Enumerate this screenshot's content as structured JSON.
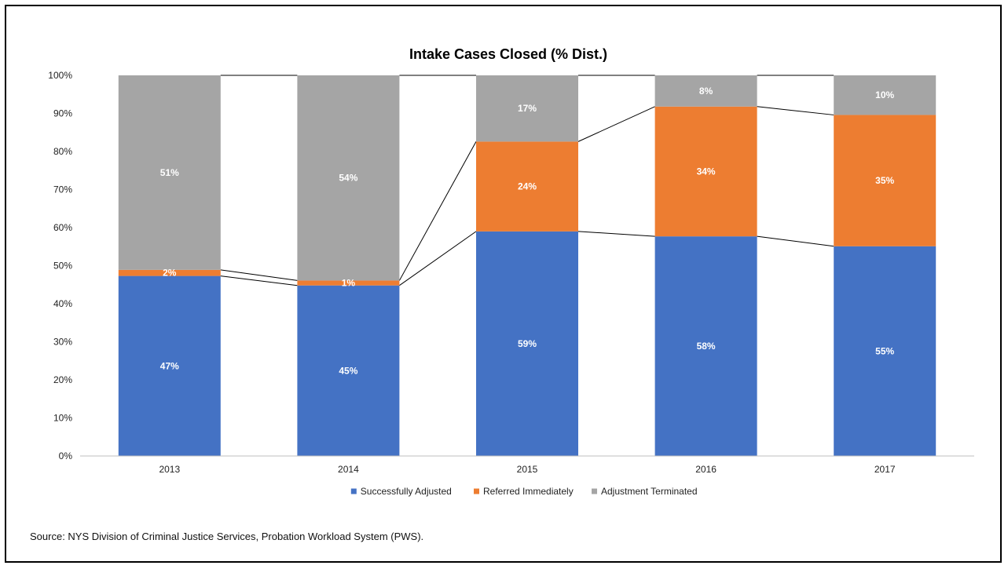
{
  "source_note": "Source: NYS Division of Criminal Justice Services, Probation Workload System (PWS).",
  "chart_data": {
    "type": "bar",
    "stacked": true,
    "percent_stacked": true,
    "title": "Intake Cases Closed (% Dist.)",
    "categories": [
      "2013",
      "2014",
      "2015",
      "2016",
      "2017"
    ],
    "series": [
      {
        "name": "Successfully Adjusted",
        "color": "#4472C4",
        "values": [
          47.3,
          44.8,
          59.0,
          57.7,
          55.1
        ],
        "labels": [
          "47%",
          "45%",
          "59%",
          "58%",
          "55%"
        ]
      },
      {
        "name": "Referred Immediately",
        "color": "#ED7D31",
        "values": [
          1.6,
          1.3,
          23.6,
          34.1,
          34.5
        ],
        "labels": [
          "2%",
          "1%",
          "24%",
          "34%",
          "35%"
        ]
      },
      {
        "name": "Adjustment Terminated",
        "color": "#A5A5A5",
        "values": [
          51.1,
          53.9,
          17.4,
          8.2,
          10.4
        ],
        "labels": [
          "51%",
          "54%",
          "17%",
          "8%",
          "10%"
        ]
      }
    ],
    "ylim": [
      0,
      100
    ],
    "yticks": [
      "0%",
      "10%",
      "20%",
      "30%",
      "40%",
      "50%",
      "60%",
      "70%",
      "80%",
      "90%",
      "100%"
    ],
    "series_lines": true,
    "grid": false,
    "legend": "bottom"
  }
}
